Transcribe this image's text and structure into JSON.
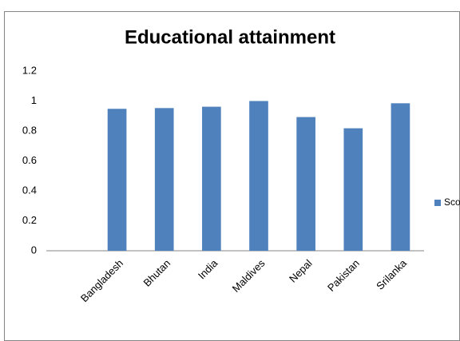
{
  "chart_data": {
    "type": "bar",
    "title": "Educational attainment",
    "categories": [
      "Bangladesh",
      "Bhutan",
      "India",
      "Maldives",
      "Nepal",
      "Pakistan",
      "Srilanka"
    ],
    "series": [
      {
        "name": "Score",
        "color": "#4f81bd",
        "values": [
          0.948,
          0.953,
          0.962,
          1.0,
          0.893,
          0.818,
          0.985
        ]
      }
    ],
    "ylim": [
      0,
      1.2
    ],
    "yticks": [
      0,
      0.2,
      0.4,
      0.6,
      0.8,
      1,
      1.2
    ],
    "grid": false,
    "legend": "right"
  }
}
